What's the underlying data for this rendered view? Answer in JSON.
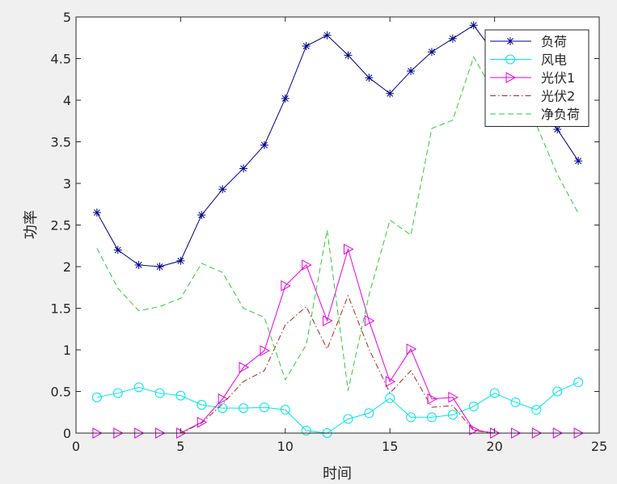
{
  "chart_data": {
    "type": "line",
    "title": "",
    "xlabel": "时间",
    "ylabel": "功率",
    "xlim": [
      0,
      25
    ],
    "ylim": [
      0,
      5
    ],
    "xticks": [
      0,
      5,
      10,
      15,
      20,
      25
    ],
    "yticks": [
      0,
      0.5,
      1,
      1.5,
      2,
      2.5,
      3,
      3.5,
      4,
      4.5,
      5
    ],
    "xtick_labels": [
      "0",
      "5",
      "10",
      "15",
      "20",
      "25"
    ],
    "ytick_labels": [
      "0",
      "0.5",
      "1",
      "1.5",
      "2",
      "2.5",
      "3",
      "3.5",
      "4",
      "4.5",
      "5"
    ],
    "grid": false,
    "legend_position": "top-right",
    "x": [
      1,
      2,
      3,
      4,
      5,
      6,
      7,
      8,
      9,
      10,
      11,
      12,
      13,
      14,
      15,
      16,
      17,
      18,
      19,
      20,
      21,
      22,
      23,
      24
    ],
    "series": [
      {
        "name": "负荷",
        "color": "#00008B",
        "line_style": "solid",
        "marker": "asterisk",
        "values": [
          2.65,
          2.2,
          2.02,
          2.0,
          2.07,
          2.62,
          2.93,
          3.18,
          3.46,
          4.02,
          4.65,
          4.78,
          4.54,
          4.27,
          4.08,
          4.35,
          4.58,
          4.74,
          4.9,
          4.56,
          4.34,
          3.99,
          3.65,
          3.27
        ]
      },
      {
        "name": "风电",
        "color": "#00E5E5",
        "line_style": "solid",
        "marker": "circle",
        "values": [
          0.43,
          0.48,
          0.55,
          0.48,
          0.45,
          0.34,
          0.3,
          0.3,
          0.31,
          0.28,
          0.03,
          0.0,
          0.17,
          0.24,
          0.42,
          0.19,
          0.19,
          0.22,
          0.32,
          0.48,
          0.37,
          0.28,
          0.5,
          0.61
        ]
      },
      {
        "name": "光伏1",
        "color": "#E600E6",
        "line_style": "solid",
        "marker": "triangle-right",
        "values": [
          0,
          0,
          0,
          0,
          0,
          0.13,
          0.41,
          0.79,
          0.99,
          1.77,
          2.02,
          1.35,
          2.21,
          1.35,
          0.62,
          1.01,
          0.41,
          0.43,
          0.04,
          0,
          0,
          0,
          0,
          0
        ]
      },
      {
        "name": "光伏2",
        "color": "#B22222",
        "line_style": "dashdot",
        "marker": "none",
        "values": [
          0,
          0,
          0,
          0,
          0,
          0.12,
          0.35,
          0.62,
          0.75,
          1.3,
          1.52,
          1.01,
          1.65,
          1.01,
          0.48,
          0.75,
          0.31,
          0.33,
          0.03,
          0,
          0,
          0,
          0,
          0
        ]
      },
      {
        "name": "净负荷",
        "color": "#2ECC2E",
        "line_style": "dashed",
        "marker": "none",
        "values": [
          2.22,
          1.74,
          1.47,
          1.52,
          1.62,
          2.04,
          1.93,
          1.5,
          1.39,
          0.64,
          1.06,
          2.44,
          0.51,
          1.66,
          2.56,
          2.38,
          3.66,
          3.76,
          4.52,
          4.08,
          3.96,
          3.7,
          3.11,
          2.64
        ]
      }
    ]
  }
}
